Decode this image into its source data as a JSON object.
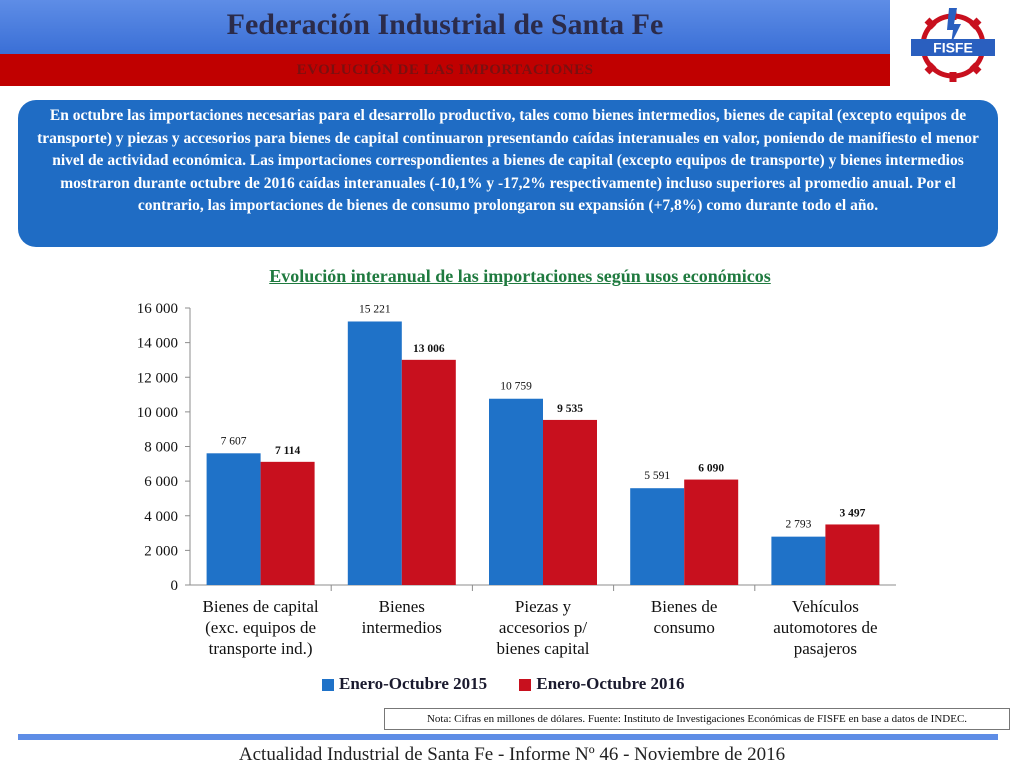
{
  "header": {
    "title": "Federación Industrial de Santa Fe",
    "subtitle": "EVOLUCIÓN DE LAS IMPORTACIONES",
    "logo_text": "FISFE"
  },
  "summary": "En octubre las importaciones necesarias para el desarrollo productivo, tales como bienes intermedios, bienes de capital (excepto equipos de transporte) y piezas y accesorios para bienes de capital continuaron presentando caídas interanuales en valor, poniendo de manifiesto el menor nivel de actividad económica. Las importaciones correspondientes a bienes de capital (excepto equipos de transporte) y bienes intermedios mostraron durante octubre de 2016 caídas interanuales (-10,1% y -17,2% respectivamente) incluso superiores al promedio anual. Por el contrario, las importaciones de bienes de consumo prolongaron su expansión (+7,8%) como durante todo el año.",
  "chart_data": {
    "type": "bar",
    "title": "Evolución interanual de las importaciones según usos económicos",
    "categories": [
      [
        "Bienes de capital",
        "(exc. equipos de",
        "transporte ind.)"
      ],
      [
        "Bienes",
        "intermedios"
      ],
      [
        "Piezas y",
        "accesorios p/",
        "bienes capital"
      ],
      [
        "Bienes de",
        "consumo"
      ],
      [
        "Vehículos",
        "automotores de",
        "pasajeros"
      ]
    ],
    "series": [
      {
        "name": "Enero-Octubre 2015",
        "color": "#1f72c8",
        "values": [
          7607,
          15221,
          10759,
          5591,
          2793
        ],
        "labels": [
          "7 607",
          "15 221",
          "10 759",
          "5 591",
          "2 793"
        ]
      },
      {
        "name": "Enero-Octubre 2016",
        "color": "#c8101e",
        "values": [
          7114,
          13006,
          9535,
          6090,
          3497
        ],
        "labels": [
          "7 114",
          "13 006",
          "9 535",
          "6 090",
          "3 497"
        ]
      }
    ],
    "yticks": [
      {
        "value": 0,
        "label": "0"
      },
      {
        "value": 2000,
        "label": "2 000"
      },
      {
        "value": 4000,
        "label": "4 000"
      },
      {
        "value": 6000,
        "label": "6 000"
      },
      {
        "value": 8000,
        "label": "8 000"
      },
      {
        "value": 10000,
        "label": "10 000"
      },
      {
        "value": 12000,
        "label": "12 000"
      },
      {
        "value": 14000,
        "label": "14 000"
      },
      {
        "value": 16000,
        "label": "16 000"
      }
    ],
    "ylim": [
      0,
      16000
    ],
    "grid": false,
    "legend_position": "bottom"
  },
  "note": "Nota: Cifras en millones de dólares. Fuente: Instituto de Investigaciones Económicas de  FISFE en base a datos de INDEC.",
  "footer": "Actualidad Industrial de Santa Fe - Informe Nº 46 - Noviembre de 2016"
}
